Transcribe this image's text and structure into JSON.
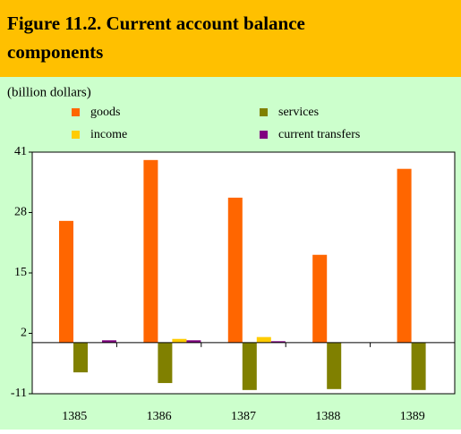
{
  "chart_data": {
    "type": "bar",
    "title": "Figure 11.2. Current account balance components",
    "unit_label": "(billion dollars)",
    "categories": [
      "1385",
      "1386",
      "1387",
      "1388",
      "1389"
    ],
    "series": [
      {
        "name": "goods",
        "color": "#FF6600",
        "values": [
          26.2,
          39.3,
          31.2,
          18.9,
          37.4
        ]
      },
      {
        "name": "services",
        "color": "#808000",
        "values": [
          -6.4,
          -8.7,
          -10.2,
          -10,
          -10.2
        ]
      },
      {
        "name": "income",
        "color": "#FFCC00",
        "values": [
          0,
          0.8,
          1.2,
          0,
          0
        ]
      },
      {
        "name": "current transfers",
        "color": "#800080",
        "values": [
          0.5,
          0.5,
          0.3,
          0,
          0
        ]
      }
    ],
    "ylim": [
      -11,
      41
    ],
    "yticks": [
      -11,
      2,
      15,
      28,
      41
    ]
  }
}
